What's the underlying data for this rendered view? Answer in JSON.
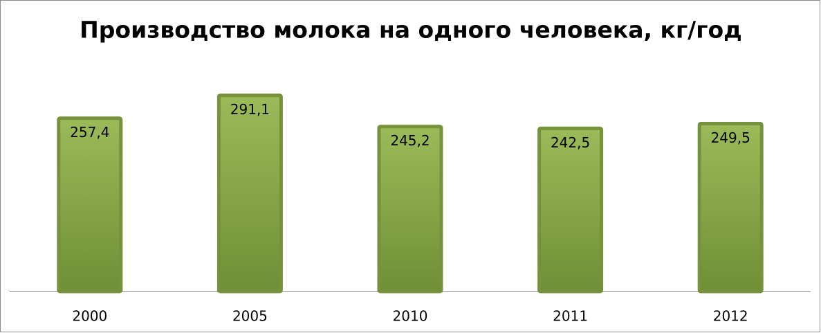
{
  "chart_data": {
    "type": "bar",
    "title": "Производство молока на одного человека, кг/год",
    "categories": [
      "2000",
      "2005",
      "2010",
      "2011",
      "2012"
    ],
    "values": [
      257.4,
      291.1,
      245.2,
      242.5,
      249.5
    ],
    "value_labels": [
      "257,4",
      "291,1",
      "245,2",
      "242,5",
      "249,5"
    ],
    "color": "#9bbb59",
    "ylim": [
      0,
      350
    ]
  }
}
